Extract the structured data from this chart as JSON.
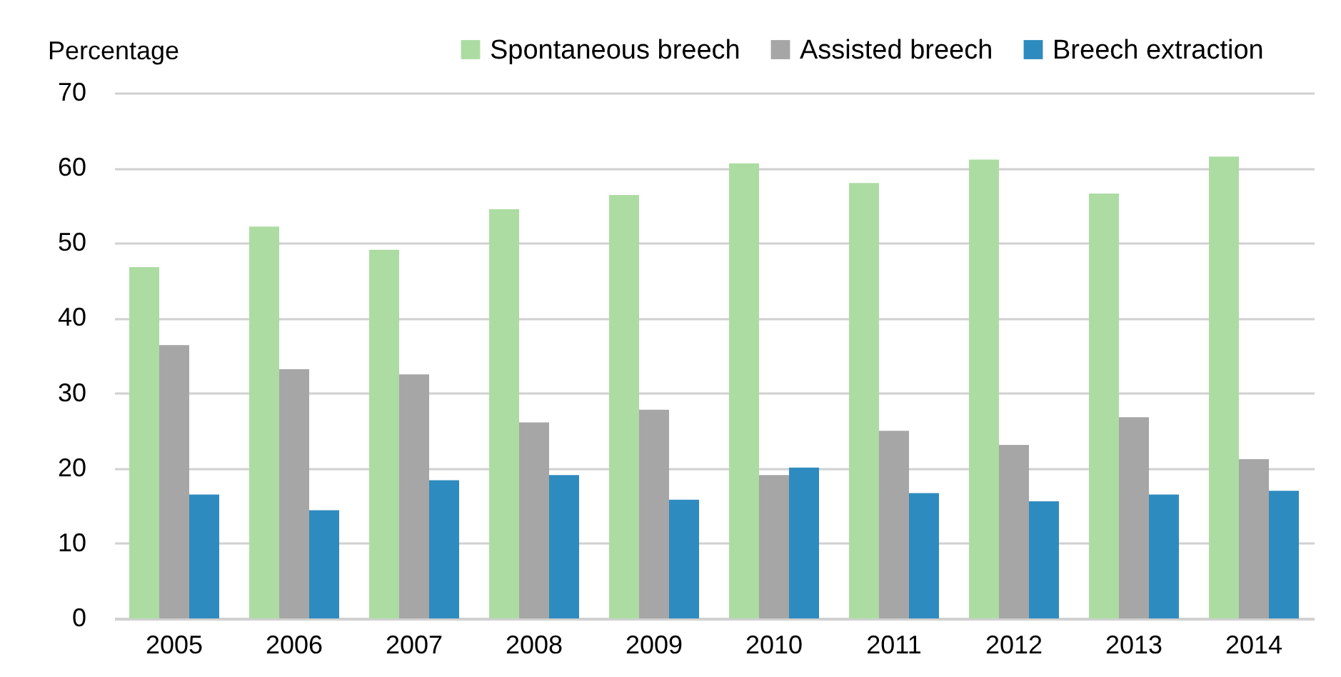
{
  "chart_data": {
    "type": "bar",
    "ylabel": "Percentage",
    "categories": [
      "2005",
      "2006",
      "2007",
      "2008",
      "2009",
      "2010",
      "2011",
      "2012",
      "2013",
      "2014"
    ],
    "series": [
      {
        "name": "Spontaneous breech",
        "color": "#acdca2",
        "values": [
          46.8,
          52.2,
          49.1,
          54.5,
          56.4,
          60.6,
          58.0,
          61.1,
          56.6,
          61.5
        ]
      },
      {
        "name": "Assisted breech",
        "color": "#a6a6a6",
        "values": [
          36.4,
          33.2,
          32.5,
          26.1,
          27.8,
          19.1,
          25.0,
          23.1,
          26.8,
          21.2
        ]
      },
      {
        "name": "Breech extraction",
        "color": "#2e8bbf",
        "values": [
          16.5,
          14.4,
          18.4,
          19.1,
          15.8,
          20.1,
          16.7,
          15.6,
          16.5,
          17.0
        ]
      }
    ],
    "ylim": [
      0,
      70
    ],
    "yticks": [
      0,
      10,
      20,
      30,
      40,
      50,
      60,
      70
    ],
    "grid": "y",
    "legend": "top"
  }
}
